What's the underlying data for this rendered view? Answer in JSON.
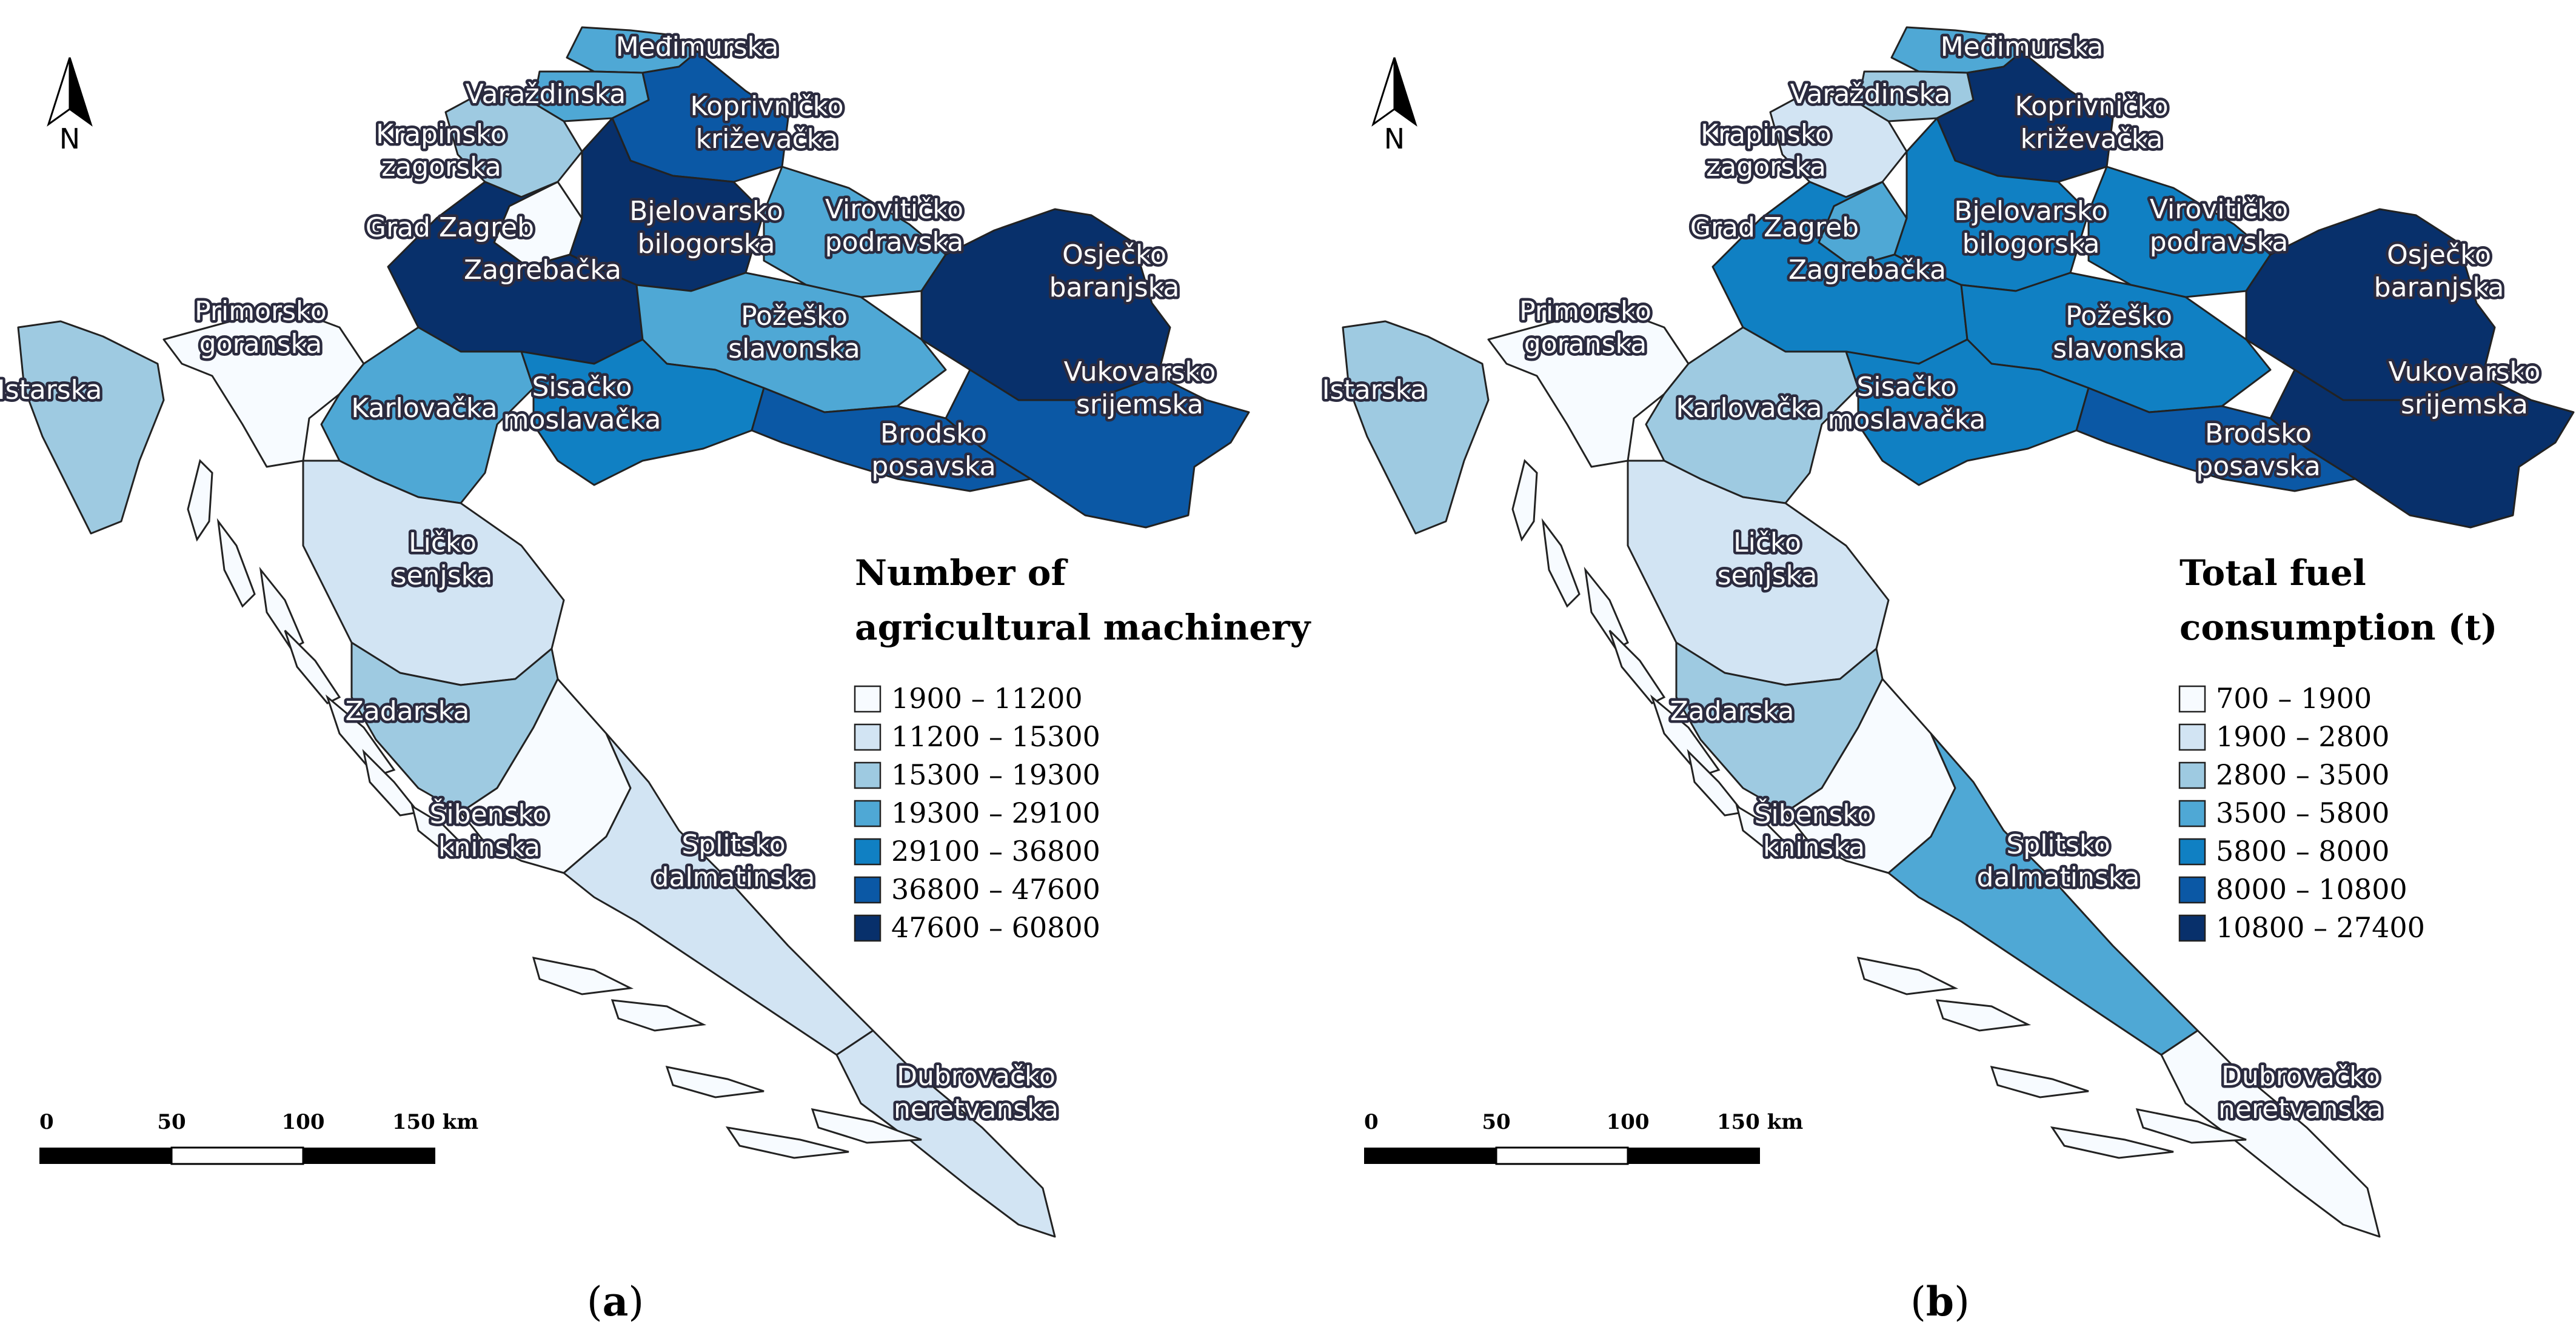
{
  "palette": [
    "#f7fbff",
    "#d2e4f3",
    "#9ecae1",
    "#4fa8d5",
    "#1080c3",
    "#0b58a5",
    "#08306b"
  ],
  "panels": [
    {
      "caption_letter": "a",
      "legend_title_lines": [
        "Number of",
        "agricultural machinery"
      ],
      "legend_classes": [
        "1900 – 11200",
        "11200 – 15300",
        "15300 – 19300",
        "19300 – 29100",
        "29100 – 36800",
        "36800 – 47600",
        "47600 – 60800"
      ],
      "region_classes": {
        "medimurska": 3,
        "varazdinska": 3,
        "krapinsko": 2,
        "grad-zagreb": 0,
        "zagrebacka": 6,
        "koprivnicko": 5,
        "bjelovarsko": 6,
        "viroviticko": 3,
        "osjecko": 6,
        "pozesko": 3,
        "vukovarsko": 5,
        "brodsko": 5,
        "sisacko": 4,
        "karlovacka": 3,
        "primorsko": 0,
        "istarska": 2,
        "licko": 1,
        "zadarska": 2,
        "sibensko": 0,
        "splitsko": 1,
        "dubrovacko": 1
      }
    },
    {
      "caption_letter": "b",
      "legend_title_lines": [
        "Total fuel",
        "consumption (t)"
      ],
      "legend_classes": [
        "700 – 1900",
        "1900 – 2800",
        "2800 – 3500",
        "3500 – 5800",
        "5800 – 8000",
        "8000 – 10800",
        "10800 – 27400"
      ],
      "region_classes": {
        "medimurska": 3,
        "varazdinska": 2,
        "krapinsko": 1,
        "grad-zagreb": 3,
        "zagrebacka": 4,
        "koprivnicko": 6,
        "bjelovarsko": 4,
        "viroviticko": 4,
        "osjecko": 6,
        "pozesko": 4,
        "vukovarsko": 6,
        "brodsko": 5,
        "sisacko": 4,
        "karlovacka": 2,
        "primorsko": 0,
        "istarska": 2,
        "licko": 1,
        "zadarska": 2,
        "sibensko": 0,
        "splitsko": 3,
        "dubrovacko": 0
      }
    }
  ],
  "region_labels": {
    "medimurska": [
      "Međimurska"
    ],
    "varazdinska": [
      "Varaždinska"
    ],
    "krapinsko": [
      "Krapinsko",
      "zagorska"
    ],
    "koprivnicko": [
      "Koprivničko",
      "križevačka"
    ],
    "grad-zagreb": [
      "Grad Zagreb"
    ],
    "bjelovarsko": [
      "Bjelovarsko",
      "bilogorska"
    ],
    "viroviticko": [
      "Virovitičko",
      "podravska"
    ],
    "zagrebacka": [
      "Zagrebačka"
    ],
    "osjecko": [
      "Osječko",
      "baranjska"
    ],
    "primorsko": [
      "Primorsko",
      "goranska"
    ],
    "pozesko": [
      "Požeško",
      "slavonska"
    ],
    "istarska": [
      "Istarska"
    ],
    "karlovacka": [
      "Karlovačka"
    ],
    "sisacko": [
      "Sisačko",
      "moslavačka"
    ],
    "vukovarsko": [
      "Vukovarsko",
      "srijemska"
    ],
    "brodsko": [
      "Brodsko",
      "posavska"
    ],
    "licko": [
      "Ličko",
      "senjska"
    ],
    "zadarska": [
      "Zadarska"
    ],
    "sibensko": [
      "Šibensko",
      "kninska"
    ],
    "splitsko": [
      "Splitsko",
      "dalmatinska"
    ],
    "dubrovacko": [
      "Dubrovačko",
      "neretvanska"
    ]
  },
  "north_label": "N",
  "scale_bar_labels": [
    "0",
    "50",
    "100",
    "150 km"
  ]
}
